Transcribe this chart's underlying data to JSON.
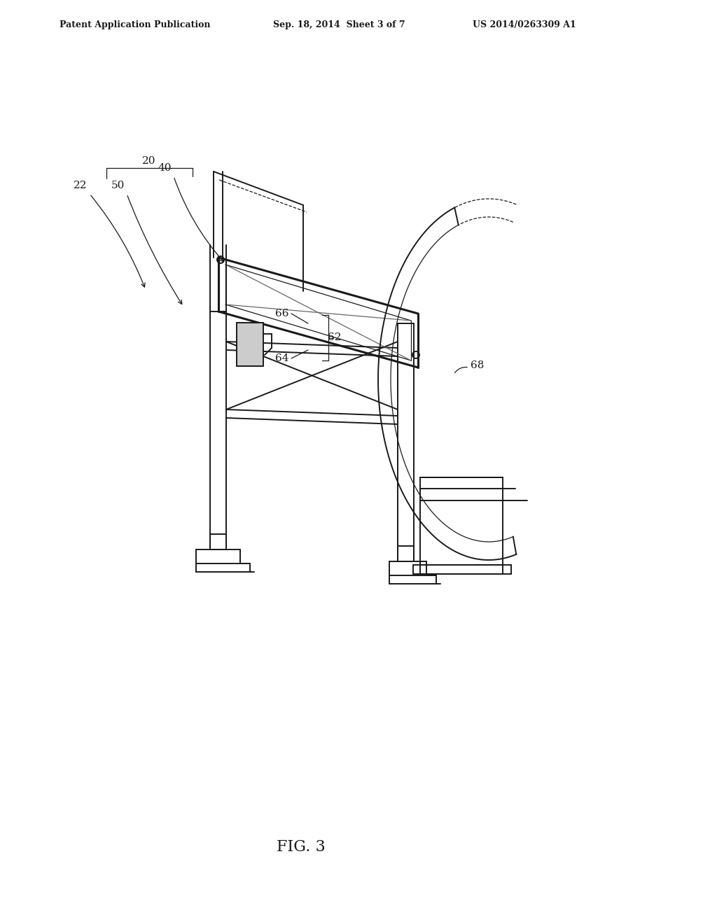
{
  "background_color": "#ffffff",
  "line_color": "#1a1a1a",
  "header_left": "Patent Application Publication",
  "header_center": "Sep. 18, 2014  Sheet 3 of 7",
  "header_right": "US 2014/0263309 A1",
  "figure_label": "FIG. 3"
}
